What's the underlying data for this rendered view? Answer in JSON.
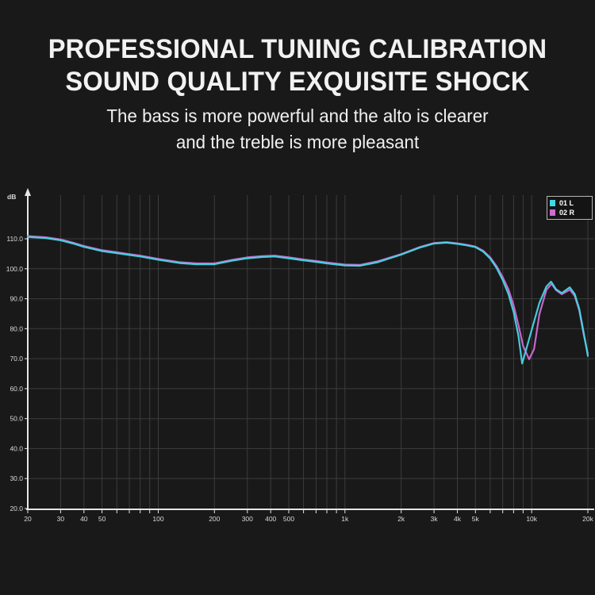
{
  "header": {
    "title_line1": "PROFESSIONAL TUNING CALIBRATION",
    "title_line2": "SOUND QUALITY EXQUISITE SHOCK",
    "subtitle_line1": "The bass is more powerful and the alto is clearer",
    "subtitle_line2": "and the treble is more pleasant"
  },
  "chart_data": {
    "type": "line",
    "title": "",
    "xlabel": "",
    "ylabel": "dB",
    "x_scale": "log",
    "x_range": [
      20,
      20000
    ],
    "y_range": [
      20,
      115
    ],
    "grid": true,
    "legend_position": "top-right",
    "colors": {
      "grid": "#3c3c3c",
      "axis": "#e6e6e6",
      "tick_label": "#d9d9d9"
    },
    "y_ticks": [
      {
        "value": 110,
        "label": "110.0"
      },
      {
        "value": 100,
        "label": "100.0"
      },
      {
        "value": 90,
        "label": "90.0"
      },
      {
        "value": 80,
        "label": "80.0"
      },
      {
        "value": 70,
        "label": "70.0"
      },
      {
        "value": 60,
        "label": "60.0"
      },
      {
        "value": 50,
        "label": "50.0"
      },
      {
        "value": 40,
        "label": "40.0"
      },
      {
        "value": 30,
        "label": "30.0"
      },
      {
        "value": 20,
        "label": "20.0"
      }
    ],
    "y_gridlines": [
      30,
      40,
      50,
      60,
      70,
      80,
      90,
      100,
      110
    ],
    "x_ticks": [
      {
        "value": 20,
        "label": "20"
      },
      {
        "value": 30,
        "label": "30"
      },
      {
        "value": 40,
        "label": "40"
      },
      {
        "value": 50,
        "label": "50"
      },
      {
        "value": 100,
        "label": "100"
      },
      {
        "value": 200,
        "label": "200"
      },
      {
        "value": 300,
        "label": "300"
      },
      {
        "value": 400,
        "label": "400"
      },
      {
        "value": 500,
        "label": "500"
      },
      {
        "value": 1000,
        "label": "1k"
      },
      {
        "value": 2000,
        "label": "2k"
      },
      {
        "value": 3000,
        "label": "3k"
      },
      {
        "value": 4000,
        "label": "4k"
      },
      {
        "value": 5000,
        "label": "5k"
      },
      {
        "value": 10000,
        "label": "10k"
      },
      {
        "value": 20000,
        "label": "20k"
      }
    ],
    "x_gridlines": [
      30,
      40,
      50,
      60,
      70,
      80,
      90,
      100,
      200,
      300,
      400,
      500,
      600,
      700,
      800,
      900,
      1000,
      2000,
      3000,
      4000,
      5000,
      6000,
      7000,
      8000,
      9000,
      10000,
      20000
    ],
    "legend": [
      {
        "label": "01 L",
        "color": "#45d6e4"
      },
      {
        "label": "02 R",
        "color": "#cf6bd4"
      }
    ],
    "series": [
      {
        "name": "01 L",
        "color": "#45d6e4",
        "points": [
          [
            20,
            110.6
          ],
          [
            25,
            110.2
          ],
          [
            30,
            109.5
          ],
          [
            35,
            108.4
          ],
          [
            40,
            107.3
          ],
          [
            50,
            105.9
          ],
          [
            60,
            105.2
          ],
          [
            70,
            104.6
          ],
          [
            80,
            104.1
          ],
          [
            100,
            103.0
          ],
          [
            130,
            101.9
          ],
          [
            160,
            101.5
          ],
          [
            200,
            101.5
          ],
          [
            250,
            102.7
          ],
          [
            300,
            103.5
          ],
          [
            360,
            103.9
          ],
          [
            420,
            104.1
          ],
          [
            500,
            103.5
          ],
          [
            600,
            102.8
          ],
          [
            700,
            102.3
          ],
          [
            800,
            101.8
          ],
          [
            1000,
            101.1
          ],
          [
            1200,
            101.0
          ],
          [
            1500,
            102.2
          ],
          [
            2000,
            104.7
          ],
          [
            2500,
            107.0
          ],
          [
            3000,
            108.4
          ],
          [
            3500,
            108.7
          ],
          [
            4000,
            108.3
          ],
          [
            4500,
            107.8
          ],
          [
            5000,
            107.2
          ],
          [
            5500,
            105.7
          ],
          [
            6000,
            103.4
          ],
          [
            6500,
            100.2
          ],
          [
            7000,
            96.2
          ],
          [
            7500,
            91.6
          ],
          [
            8000,
            85.6
          ],
          [
            8500,
            77.6
          ],
          [
            8900,
            68.4
          ],
          [
            9400,
            73.6
          ],
          [
            10000,
            79.6
          ],
          [
            11000,
            88.6
          ],
          [
            12000,
            94.1
          ],
          [
            12700,
            95.7
          ],
          [
            13500,
            93.2
          ],
          [
            14500,
            91.9
          ],
          [
            16000,
            93.8
          ],
          [
            17000,
            91.6
          ],
          [
            18000,
            86.6
          ],
          [
            19000,
            78.6
          ],
          [
            20000,
            70.9
          ]
        ]
      },
      {
        "name": "02 R",
        "color": "#cf6bd4",
        "points": [
          [
            20,
            110.9
          ],
          [
            25,
            110.5
          ],
          [
            30,
            109.8
          ],
          [
            35,
            108.7
          ],
          [
            40,
            107.6
          ],
          [
            50,
            106.2
          ],
          [
            60,
            105.5
          ],
          [
            70,
            104.9
          ],
          [
            80,
            104.4
          ],
          [
            100,
            103.3
          ],
          [
            130,
            102.2
          ],
          [
            160,
            101.8
          ],
          [
            200,
            101.8
          ],
          [
            250,
            103.0
          ],
          [
            300,
            103.8
          ],
          [
            360,
            104.2
          ],
          [
            420,
            104.4
          ],
          [
            500,
            103.8
          ],
          [
            600,
            103.1
          ],
          [
            700,
            102.6
          ],
          [
            800,
            102.1
          ],
          [
            1000,
            101.4
          ],
          [
            1200,
            101.3
          ],
          [
            1500,
            102.5
          ],
          [
            2000,
            104.9
          ],
          [
            2500,
            107.2
          ],
          [
            3000,
            108.6
          ],
          [
            3500,
            108.9
          ],
          [
            4000,
            108.5
          ],
          [
            4500,
            108.0
          ],
          [
            5000,
            107.4
          ],
          [
            5500,
            106.0
          ],
          [
            6000,
            103.8
          ],
          [
            6500,
            100.8
          ],
          [
            7000,
            97.2
          ],
          [
            7500,
            93.2
          ],
          [
            8000,
            87.8
          ],
          [
            8500,
            81.2
          ],
          [
            9000,
            74.2
          ],
          [
            9700,
            69.8
          ],
          [
            10300,
            73.2
          ],
          [
            11000,
            84.8
          ],
          [
            12000,
            93.0
          ],
          [
            12800,
            95.0
          ],
          [
            13500,
            92.9
          ],
          [
            14500,
            91.5
          ],
          [
            16000,
            93.0
          ],
          [
            17000,
            91.0
          ],
          [
            18000,
            86.1
          ],
          [
            19000,
            78.0
          ],
          [
            20000,
            71.6
          ]
        ]
      }
    ]
  }
}
